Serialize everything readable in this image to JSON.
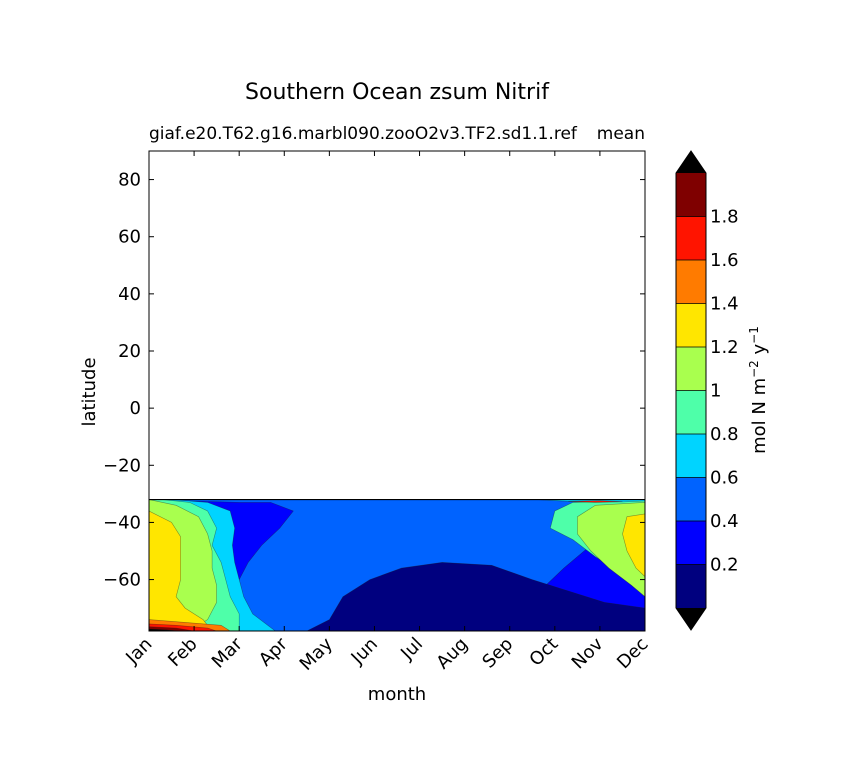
{
  "chart_data": {
    "type": "contour",
    "title": "Southern Ocean zsum Nitrif",
    "subtitle_left": "giaf.e20.T62.g16.marbl090.zooO2v3.TF2.sd1.1.ref",
    "subtitle_right": "mean",
    "xlabel": "month",
    "ylabel": "latitude",
    "colorbar_label": "mol N m",
    "colorbar_label_sup1": "−2",
    "colorbar_label_mid": " y",
    "colorbar_label_sup2": "−1",
    "x_categories": [
      "Jan",
      "Feb",
      "Mar",
      "Apr",
      "May",
      "Jun",
      "Jul",
      "Aug",
      "Sep",
      "Oct",
      "Nov",
      "Dec"
    ],
    "ylim": [
      -78,
      90
    ],
    "yticks": [
      80,
      60,
      40,
      20,
      0,
      -20,
      -40,
      -60
    ],
    "ytick_labels": [
      "80",
      "60",
      "40",
      "20",
      "0",
      "−20",
      "−40",
      "−60"
    ],
    "data_lat_range": [
      -78,
      -32
    ],
    "levels": [
      0,
      0.2,
      0.4,
      0.6,
      0.8,
      1.0,
      1.2,
      1.4,
      1.6,
      1.8,
      2.0
    ],
    "colorbar_ticks": [
      "0.2",
      "0.4",
      "0.6",
      "0.8",
      "1",
      "1.2",
      "1.4",
      "1.6",
      "1.8"
    ],
    "colormap": [
      "#00007f",
      "#0000ff",
      "#0063ff",
      "#00d4ff",
      "#4effa9",
      "#a9ff4e",
      "#ffe600",
      "#ff7b00",
      "#ff1400",
      "#7f0000"
    ],
    "extend": "both",
    "over_color": "#000000",
    "under_color": "#000000",
    "contour_bands": [
      {
        "level": 0.4,
        "boundary": [
          [
            0,
            -32
          ],
          [
            0.4,
            -32.5
          ],
          [
            1.0,
            -32.5
          ],
          [
            2.0,
            -33
          ],
          [
            2.7,
            -33
          ],
          [
            3.2,
            -36
          ],
          [
            2.9,
            -42
          ],
          [
            2.5,
            -48
          ],
          [
            2.2,
            -54
          ],
          [
            2.0,
            -60
          ],
          [
            1.9,
            -66
          ],
          [
            2.0,
            -72
          ],
          [
            2.2,
            -78
          ],
          [
            7.5,
            -78
          ],
          [
            7.8,
            -74
          ],
          [
            8.3,
            -68
          ],
          [
            8.8,
            -62
          ],
          [
            9.2,
            -56
          ],
          [
            9.8,
            -48
          ],
          [
            10.2,
            -42
          ],
          [
            10.7,
            -36
          ],
          [
            11,
            -33
          ],
          [
            11,
            -32
          ]
        ]
      },
      {
        "level": 0.6,
        "boundary": [
          [
            0,
            -32
          ],
          [
            0.5,
            -32
          ],
          [
            1.3,
            -33
          ],
          [
            1.8,
            -36
          ],
          [
            1.9,
            -42
          ],
          [
            1.85,
            -48
          ],
          [
            1.9,
            -54
          ],
          [
            2.0,
            -60
          ],
          [
            2.1,
            -66
          ],
          [
            2.3,
            -72
          ],
          [
            2.8,
            -78
          ],
          [
            0,
            -78
          ]
        ]
      },
      {
        "level": 0.6,
        "boundary": [
          [
            11,
            -32
          ],
          [
            10.8,
            -33
          ],
          [
            10.6,
            -38
          ],
          [
            10.4,
            -44
          ],
          [
            10.5,
            -50
          ],
          [
            10.9,
            -56
          ],
          [
            11,
            -60
          ]
        ]
      },
      {
        "level": 0.8,
        "boundary": [
          [
            0,
            -32
          ],
          [
            0.3,
            -32
          ],
          [
            0.9,
            -33
          ],
          [
            1.3,
            -36
          ],
          [
            1.5,
            -42
          ],
          [
            1.4,
            -48
          ],
          [
            1.6,
            -54
          ],
          [
            1.7,
            -60
          ],
          [
            1.8,
            -66
          ],
          [
            2.0,
            -72
          ],
          [
            2.0,
            -78
          ],
          [
            0,
            -78
          ]
        ]
      },
      {
        "level": 0.8,
        "boundary": [
          [
            11,
            -32
          ],
          [
            9.4,
            -33
          ],
          [
            9.0,
            -36
          ],
          [
            8.9,
            -42
          ],
          [
            9.4,
            -46
          ],
          [
            9.9,
            -52
          ],
          [
            10.5,
            -58
          ],
          [
            11,
            -64
          ]
        ]
      },
      {
        "level": 1.0,
        "boundary": [
          [
            0,
            -32
          ],
          [
            0.6,
            -34
          ],
          [
            1.1,
            -38
          ],
          [
            1.3,
            -44
          ],
          [
            1.4,
            -50
          ],
          [
            1.4,
            -56
          ],
          [
            1.5,
            -62
          ],
          [
            1.5,
            -68
          ],
          [
            1.3,
            -74
          ],
          [
            0.9,
            -78
          ],
          [
            0,
            -78
          ]
        ]
      },
      {
        "level": 1.0,
        "boundary": [
          [
            11,
            -33
          ],
          [
            9.9,
            -34
          ],
          [
            9.5,
            -38
          ],
          [
            9.5,
            -44
          ],
          [
            9.8,
            -50
          ],
          [
            10.2,
            -56
          ],
          [
            10.7,
            -62
          ],
          [
            11,
            -66
          ]
        ]
      },
      {
        "level": 1.2,
        "boundary": [
          [
            0,
            -36
          ],
          [
            0.5,
            -40
          ],
          [
            0.7,
            -45
          ],
          [
            0.7,
            -52
          ],
          [
            0.7,
            -60
          ],
          [
            0.6,
            -66
          ],
          [
            0.8,
            -70
          ],
          [
            1.2,
            -74
          ],
          [
            1.4,
            -78
          ],
          [
            0,
            -78
          ]
        ]
      },
      {
        "level": 1.2,
        "boundary": [
          [
            11,
            -37
          ],
          [
            10.6,
            -38
          ],
          [
            10.5,
            -44
          ],
          [
            10.6,
            -50
          ],
          [
            10.8,
            -56
          ],
          [
            11,
            -59
          ]
        ]
      },
      {
        "level": 1.4,
        "boundary": [
          [
            0,
            -74
          ],
          [
            0.8,
            -75
          ],
          [
            1.6,
            -76
          ],
          [
            1.8,
            -78
          ],
          [
            0,
            -78
          ]
        ]
      },
      {
        "level": 1.6,
        "boundary": [
          [
            0,
            -75.5
          ],
          [
            0.6,
            -76
          ],
          [
            1.3,
            -77
          ],
          [
            1.5,
            -78
          ],
          [
            0,
            -78
          ]
        ]
      },
      {
        "level": 1.8,
        "boundary": [
          [
            0,
            -76.5
          ],
          [
            0.6,
            -77
          ],
          [
            1.0,
            -78
          ],
          [
            0,
            -78
          ]
        ]
      },
      {
        "level": 2.0,
        "boundary": [
          [
            0,
            -77.3
          ],
          [
            0.4,
            -77.6
          ],
          [
            0.7,
            -78
          ],
          [
            0,
            -78
          ]
        ]
      },
      {
        "level": 1.4,
        "boundary": [
          [
            10.9,
            -78
          ],
          [
            11,
            -76.5
          ],
          [
            11,
            -78
          ]
        ]
      },
      {
        "level": 0.6,
        "boundary": [
          [
            8.6,
            -32
          ],
          [
            9.5,
            -32.8
          ],
          [
            10.5,
            -32.8
          ],
          [
            11,
            -32.5
          ],
          [
            11,
            -32
          ]
        ]
      },
      {
        "level": 1.6,
        "boundary": [
          [
            9.3,
            -32.6
          ],
          [
            9.9,
            -33
          ],
          [
            10.5,
            -32.7
          ],
          [
            10.0,
            -32.4
          ]
        ]
      }
    ],
    "lowest_band_region": [
      [
        3.5,
        -78
      ],
      [
        4.0,
        -74
      ],
      [
        4.3,
        -66
      ],
      [
        4.9,
        -60
      ],
      [
        5.6,
        -56
      ],
      [
        6.5,
        -54
      ],
      [
        7.6,
        -55
      ],
      [
        8.5,
        -60
      ],
      [
        9.3,
        -64
      ],
      [
        10.1,
        -68
      ],
      [
        11,
        -70
      ],
      [
        11,
        -78
      ]
    ]
  }
}
